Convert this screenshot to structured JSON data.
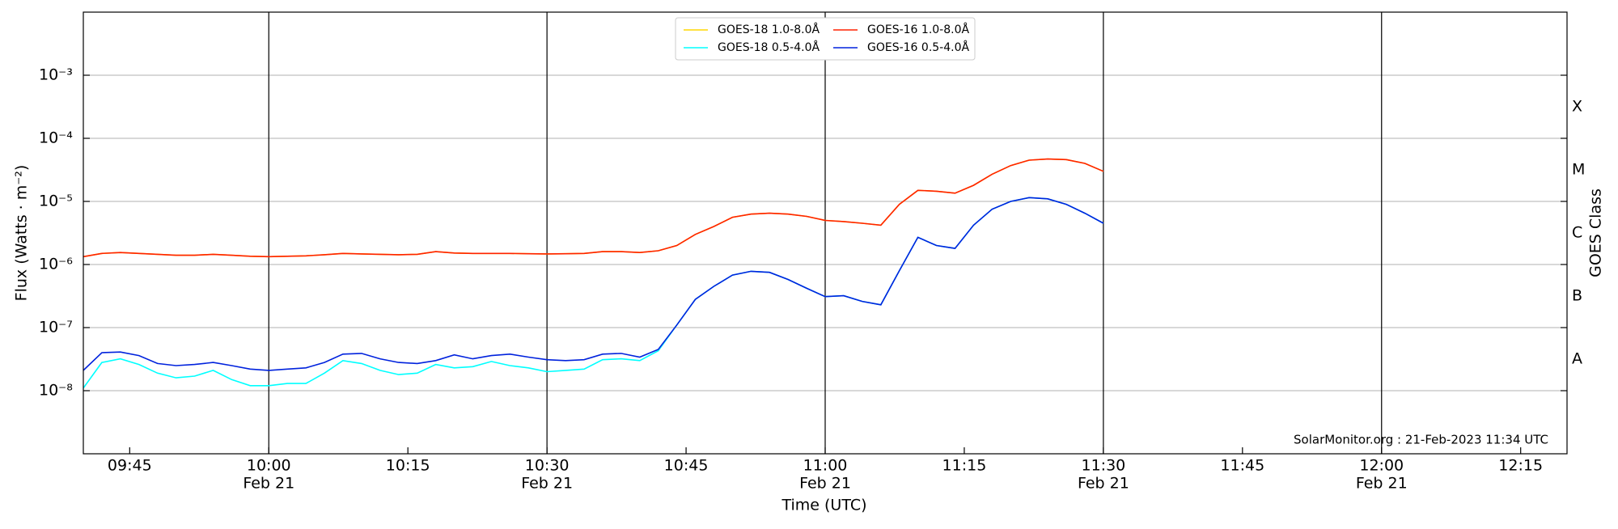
{
  "chart_data": {
    "type": "line",
    "xlabel": "Time (UTC)",
    "ylabel": "Flux (Watts · m⁻²)",
    "y2label": "GOES Class",
    "annotation": "SolarMonitor.org : 21-Feb-2023 11:34 UTC",
    "x_date": "Feb 21",
    "log_y": true,
    "grid": true,
    "legend": "upper center",
    "legend_columns": 2,
    "xlim": [
      "09:40",
      "12:20"
    ],
    "xticks": [
      "09:45",
      "10:00",
      "10:15",
      "10:30",
      "10:45",
      "11:00",
      "11:15",
      "11:30",
      "11:45",
      "12:00",
      "12:15"
    ],
    "ylim": [
      1e-09,
      0.01
    ],
    "yticks": [
      {
        "value": 1e-08,
        "label": "10⁻⁸"
      },
      {
        "value": 1e-07,
        "label": "10⁻⁷"
      },
      {
        "value": 1e-06,
        "label": "10⁻⁶"
      },
      {
        "value": 1e-05,
        "label": "10⁻⁵"
      },
      {
        "value": 0.0001,
        "label": "10⁻⁴"
      },
      {
        "value": 0.001,
        "label": "10⁻³"
      }
    ],
    "classes": [
      "A",
      "B",
      "C",
      "M",
      "X"
    ],
    "class_bounds": [
      1e-08,
      1e-07,
      1e-06,
      1e-05,
      0.0001
    ],
    "x": [
      "09:40",
      "09:42",
      "09:44",
      "09:46",
      "09:48",
      "09:50",
      "09:52",
      "09:54",
      "09:56",
      "09:58",
      "10:00",
      "10:02",
      "10:04",
      "10:06",
      "10:08",
      "10:10",
      "10:12",
      "10:14",
      "10:16",
      "10:18",
      "10:20",
      "10:22",
      "10:24",
      "10:26",
      "10:28",
      "10:30",
      "10:32",
      "10:34",
      "10:36",
      "10:38",
      "10:40",
      "10:42",
      "10:44",
      "10:46",
      "10:48",
      "10:50",
      "10:52",
      "10:54",
      "10:56",
      "10:58",
      "11:00",
      "11:02",
      "11:04",
      "11:06",
      "11:08",
      "11:10",
      "11:12",
      "11:14",
      "11:16",
      "11:18",
      "11:20",
      "11:22",
      "11:24",
      "11:26",
      "11:28",
      "11:30"
    ],
    "series": [
      {
        "name": "GOES-18 1.0-8.0Å",
        "color": "#ffd700",
        "values": [
          1.33e-06,
          1.5e-06,
          1.55e-06,
          1.5e-06,
          1.45e-06,
          1.4e-06,
          1.4e-06,
          1.45e-06,
          1.4e-06,
          1.35e-06,
          1.33e-06,
          1.35e-06,
          1.37e-06,
          1.43e-06,
          1.5e-06,
          1.47e-06,
          1.45e-06,
          1.43e-06,
          1.45e-06,
          1.6e-06,
          1.52e-06,
          1.5e-06,
          1.5e-06,
          1.5e-06,
          1.48e-06,
          1.47e-06,
          1.48e-06,
          1.5e-06,
          1.6e-06,
          1.6e-06,
          1.55e-06,
          1.65e-06,
          2e-06,
          3e-06,
          4e-06,
          5.6e-06,
          6.3e-06,
          6.5e-06,
          6.3e-06,
          5.8e-06,
          5e-06,
          4.8e-06,
          4.5e-06,
          4.2e-06,
          9e-06,
          1.5e-05,
          1.45e-05,
          1.35e-05,
          1.8e-05,
          2.7e-05,
          3.7e-05,
          4.5e-05,
          4.7e-05,
          4.6e-05,
          4e-05,
          3e-05
        ]
      },
      {
        "name": "GOES-18 0.5-4.0Å",
        "color": "#00ffff",
        "values": [
          1.1e-08,
          2.8e-08,
          3.2e-08,
          2.6e-08,
          1.9e-08,
          1.6e-08,
          1.7e-08,
          2.1e-08,
          1.5e-08,
          1.2e-08,
          1.2e-08,
          1.3e-08,
          1.3e-08,
          1.9e-08,
          3e-08,
          2.7e-08,
          2.1e-08,
          1.8e-08,
          1.9e-08,
          2.6e-08,
          2.3e-08,
          2.4e-08,
          2.9e-08,
          2.5e-08,
          2.3e-08,
          2e-08,
          2.1e-08,
          2.2e-08,
          3.1e-08,
          3.2e-08,
          3e-08,
          4.3e-08,
          1.1e-07,
          2.8e-07,
          4.5e-07,
          6.8e-07,
          7.8e-07,
          7.5e-07,
          5.8e-07,
          4.2e-07,
          3.1e-07,
          3.2e-07,
          2.6e-07,
          2.3e-07,
          8e-07,
          2.7e-06,
          2e-06,
          1.8e-06,
          4.2e-06,
          7.5e-06,
          1e-05,
          1.15e-05,
          1.1e-05,
          9e-06,
          6.5e-06,
          4.5e-06
        ]
      },
      {
        "name": "GOES-16 1.0-8.0Å",
        "color": "#ff2200",
        "values": [
          1.33e-06,
          1.5e-06,
          1.55e-06,
          1.5e-06,
          1.45e-06,
          1.4e-06,
          1.4e-06,
          1.45e-06,
          1.4e-06,
          1.35e-06,
          1.33e-06,
          1.35e-06,
          1.37e-06,
          1.43e-06,
          1.5e-06,
          1.47e-06,
          1.45e-06,
          1.43e-06,
          1.45e-06,
          1.6e-06,
          1.52e-06,
          1.5e-06,
          1.5e-06,
          1.5e-06,
          1.48e-06,
          1.47e-06,
          1.48e-06,
          1.5e-06,
          1.6e-06,
          1.6e-06,
          1.55e-06,
          1.65e-06,
          2e-06,
          3e-06,
          4e-06,
          5.6e-06,
          6.3e-06,
          6.5e-06,
          6.3e-06,
          5.8e-06,
          5e-06,
          4.8e-06,
          4.5e-06,
          4.2e-06,
          9e-06,
          1.5e-05,
          1.45e-05,
          1.35e-05,
          1.8e-05,
          2.7e-05,
          3.7e-05,
          4.5e-05,
          4.7e-05,
          4.6e-05,
          4e-05,
          3e-05
        ]
      },
      {
        "name": "GOES-16 0.5-4.0Å",
        "color": "#0022dd",
        "values": [
          2.1e-08,
          4e-08,
          4.1e-08,
          3.6e-08,
          2.7e-08,
          2.5e-08,
          2.6e-08,
          2.8e-08,
          2.5e-08,
          2.2e-08,
          2.1e-08,
          2.2e-08,
          2.3e-08,
          2.8e-08,
          3.8e-08,
          3.9e-08,
          3.2e-08,
          2.8e-08,
          2.7e-08,
          3e-08,
          3.7e-08,
          3.2e-08,
          3.6e-08,
          3.8e-08,
          3.4e-08,
          3.1e-08,
          3e-08,
          3.1e-08,
          3.8e-08,
          3.9e-08,
          3.4e-08,
          4.5e-08,
          1.1e-07,
          2.8e-07,
          4.5e-07,
          6.8e-07,
          7.8e-07,
          7.5e-07,
          5.8e-07,
          4.2e-07,
          3.1e-07,
          3.2e-07,
          2.6e-07,
          2.3e-07,
          8e-07,
          2.7e-06,
          2e-06,
          1.8e-06,
          4.2e-06,
          7.5e-06,
          1e-05,
          1.15e-05,
          1.1e-05,
          9e-06,
          6.5e-06,
          4.5e-06
        ]
      }
    ]
  }
}
